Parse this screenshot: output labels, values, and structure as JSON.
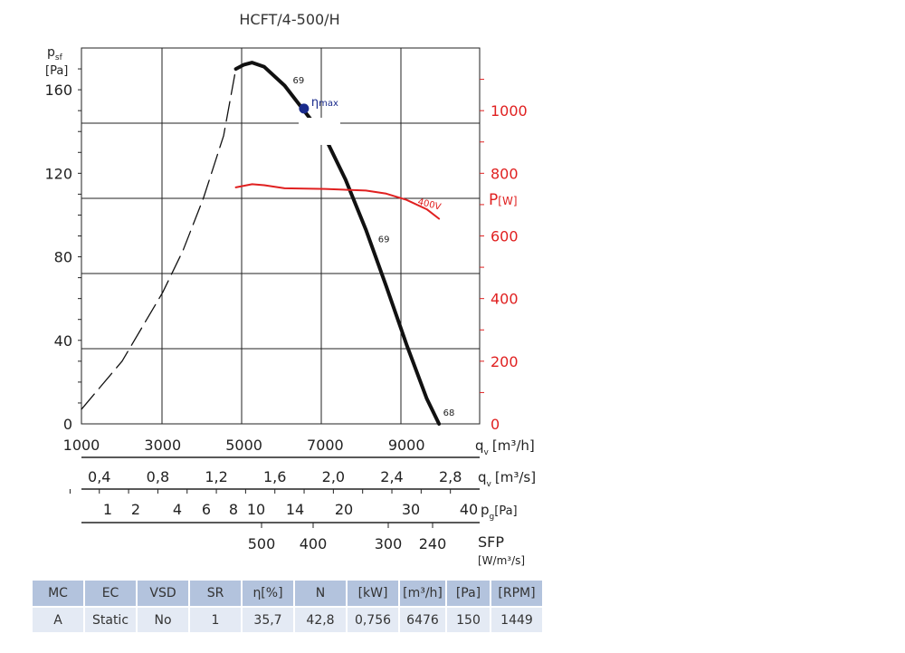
{
  "colors": {
    "curve": "#111111",
    "power": "#e02020",
    "marker": "#1a2b8c",
    "header_bg": "#b3c3dd",
    "cell_bg": "#e4eaf4"
  },
  "chart_data": {
    "type": "line",
    "title": "HCFT/4-500/H",
    "y_label": {
      "main": "p",
      "sub": "sf",
      "unit": "[Pa]"
    },
    "y_ticks": [
      "0",
      "40",
      "80",
      "120",
      "160"
    ],
    "ylim": [
      0,
      180
    ],
    "x_label": {
      "main": "q",
      "sub": "v",
      "unit": "[m³/h]"
    },
    "x_ticks": [
      "1000",
      "3000",
      "5000",
      "7000",
      "9000"
    ],
    "xlim": [
      1000,
      10800
    ],
    "power_axis": {
      "label": "P",
      "unit": "[W]",
      "ticks": [
        "0",
        "200",
        "400",
        "600",
        "800",
        "1000"
      ],
      "ylim": [
        0,
        1200
      ]
    },
    "series": [
      {
        "style": "dashed",
        "x": [
          1000,
          2000,
          3000,
          3500,
          4000,
          4500,
          4800
        ],
        "y": [
          7,
          30,
          63,
          83,
          108,
          138,
          170
        ]
      },
      {
        "style": "solid",
        "x": [
          4800,
          5000,
          5200,
          5500,
          6000,
          6476,
          7000,
          7500,
          8000,
          8500,
          9000,
          9500,
          9800
        ],
        "y": [
          170,
          172,
          173,
          171,
          162,
          150,
          137,
          117,
          93,
          66,
          38,
          12,
          0
        ]
      },
      {
        "name": "400V",
        "axis": "power",
        "style": "solid",
        "x": [
          4800,
          5200,
          5500,
          6000,
          7000,
          8000,
          8500,
          9000,
          9500,
          9800
        ],
        "y": [
          755,
          765,
          762,
          752,
          750,
          745,
          735,
          715,
          685,
          655
        ]
      }
    ],
    "annotations": [
      {
        "text": "69",
        "x": 6200,
        "y": 163
      },
      {
        "text": "69",
        "x": 8300,
        "y": 87
      },
      {
        "text": "68",
        "x": 9900,
        "y": 4
      }
    ],
    "marker": {
      "label": "η",
      "label_sub": "max",
      "x": 6476,
      "y": 151
    },
    "extra_scales": [
      {
        "label": "q",
        "label_sub": "v",
        "unit": "[m³/s]",
        "ticks": [
          "0,4",
          "0,8",
          "1,2",
          "1,6",
          "2,0",
          "2,4",
          "2,8"
        ]
      },
      {
        "label": "p",
        "label_sub": "g",
        "unit": "[Pa]",
        "ticks": [
          "1",
          "2",
          "4",
          "6",
          "8",
          "10",
          "14",
          "20",
          "30",
          "40"
        ]
      },
      {
        "label": "SFP",
        "unit": "[W/m³/s]",
        "ticks": [
          "500",
          "400",
          "300",
          "240"
        ]
      }
    ]
  },
  "table": {
    "headers": [
      "MC",
      "EC",
      "VSD",
      "SR",
      "η[%]",
      "N",
      "[kW]",
      "[m³/h]",
      "[Pa]",
      "[RPM]"
    ],
    "values": [
      "A",
      "Static",
      "No",
      "1",
      "35,7",
      "42,8",
      "0,756",
      "6476",
      "150",
      "1449"
    ]
  }
}
